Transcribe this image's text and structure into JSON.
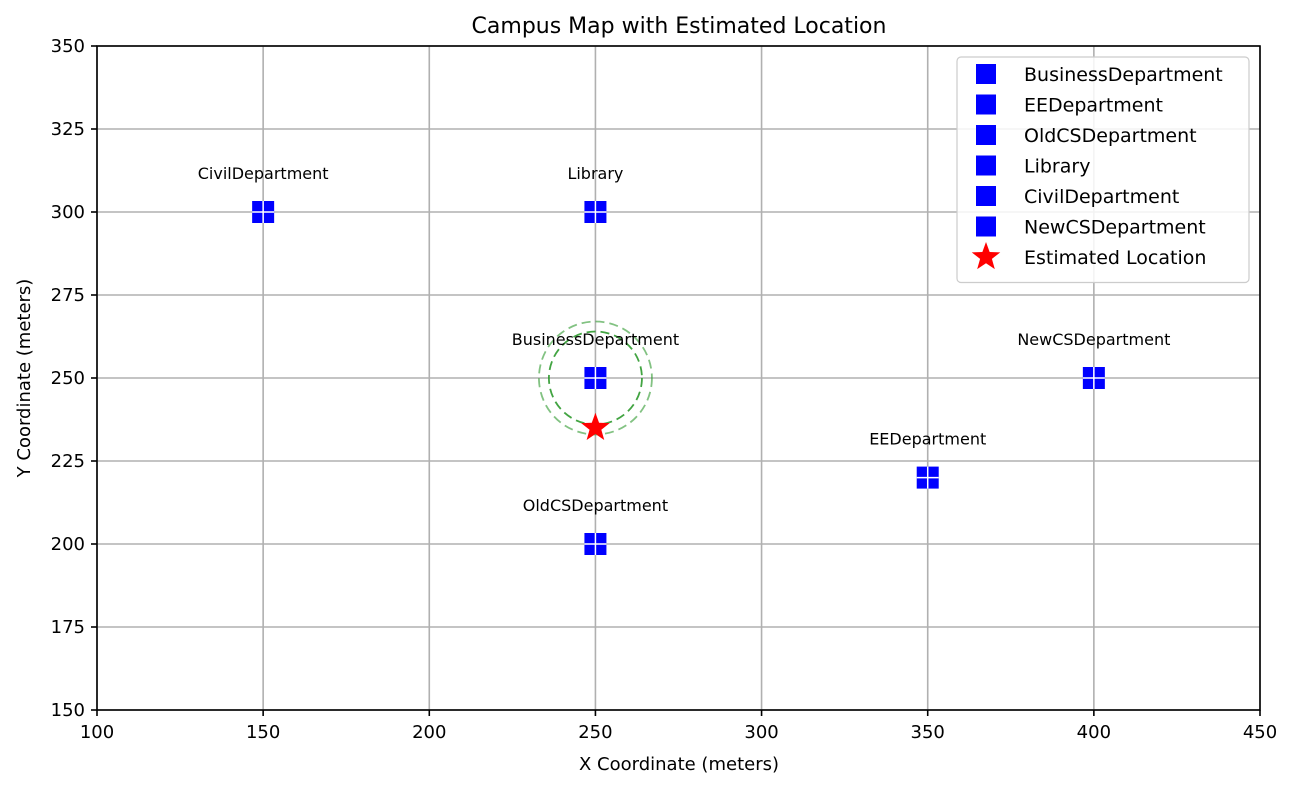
{
  "chart_data": {
    "type": "scatter",
    "title": "Campus Map with Estimated Location",
    "xlabel": "X Coordinate (meters)",
    "ylabel": "Y Coordinate (meters)",
    "xlim": [
      100,
      450
    ],
    "ylim": [
      150,
      350
    ],
    "xticks": [
      100,
      150,
      200,
      250,
      300,
      350,
      400,
      450
    ],
    "yticks": [
      150,
      175,
      200,
      225,
      250,
      275,
      300,
      325,
      350
    ],
    "grid": true,
    "legend_position": "top-right",
    "marker_color": "#0000ff",
    "estimate_color": "#ff0000",
    "circle_color": "#2e9a2e",
    "points": [
      {
        "name": "BusinessDepartment",
        "x": 250,
        "y": 250
      },
      {
        "name": "EEDepartment",
        "x": 350,
        "y": 220
      },
      {
        "name": "OldCSDepartment",
        "x": 250,
        "y": 200
      },
      {
        "name": "Library",
        "x": 250,
        "y": 300
      },
      {
        "name": "CivilDepartment",
        "x": 150,
        "y": 300
      },
      {
        "name": "NewCSDepartment",
        "x": 400,
        "y": 250
      }
    ],
    "estimated_location": {
      "name": "Estimated Location",
      "x": 250,
      "y": 235
    },
    "uncertainty_circles": [
      {
        "center_x": 250,
        "center_y": 250,
        "radius": 14
      },
      {
        "center_x": 250,
        "center_y": 250,
        "radius": 17
      }
    ]
  }
}
